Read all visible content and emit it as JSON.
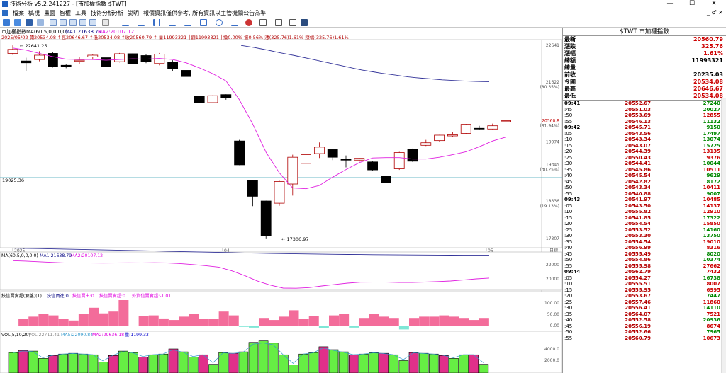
{
  "window": {
    "title": "技術分析 v5.2.241227 - [市加權指數 $TWT]",
    "min": "—",
    "max": "☐",
    "close": "✕"
  },
  "menu": [
    "檔案",
    "稿視",
    "畫面",
    "智權",
    "工具",
    "技術分析",
    "分析",
    "說明",
    "報價資訊僅供參考, 所有資訊以主管機關公告為準"
  ],
  "menu_right": "_ ♂ ×",
  "chart_header": {
    "name": "市加權指數",
    "ma_label": "MA(60,5,0,0,0,0)",
    "ma1": "MA1:21638.79",
    "ma2": "MA2:20107.12",
    "info": "2025/05/02 開20534.08 ↑高20646.67 ↑低20534.08 ↑收20560.79 ↑ 量11993321 │額11993321 │換0.00% 振0.56% 漲(325.76)1.61% 漲幅(325.76)1.61%"
  },
  "chart_data": [
    {
      "type": "candlestick",
      "title": "市加權指數",
      "y_ticks": [
        22641,
        21622,
        20560.8,
        19974,
        19345,
        18336,
        17307
      ],
      "y_pct": [
        "(80.35%)",
        "(81.94%)",
        "(30.25%)",
        "(19.13%)"
      ],
      "x_labels": [
        "2025",
        "04",
        "05"
      ],
      "annotations": [
        "22641.25",
        "17306.97",
        "19025.36"
      ],
      "candles": [
        {
          "o": 22420,
          "h": 22641,
          "l": 22380,
          "c": 22530
        },
        {
          "o": 22210,
          "h": 22300,
          "l": 21930,
          "c": 22160
        },
        {
          "o": 22250,
          "h": 22480,
          "l": 22200,
          "c": 22370
        },
        {
          "o": 22420,
          "h": 22460,
          "l": 22030,
          "c": 22060
        },
        {
          "o": 22090,
          "h": 22120,
          "l": 22010,
          "c": 22060
        },
        {
          "o": 22200,
          "h": 22330,
          "l": 22130,
          "c": 22230
        },
        {
          "o": 22320,
          "h": 22400,
          "l": 22240,
          "c": 22370
        },
        {
          "o": 22300,
          "h": 22380,
          "l": 21980,
          "c": 22050
        },
        {
          "o": 22190,
          "h": 22430,
          "l": 22170,
          "c": 22410
        },
        {
          "o": 22410,
          "h": 22420,
          "l": 22120,
          "c": 22140
        },
        {
          "o": 22360,
          "h": 22410,
          "l": 22150,
          "c": 22190
        },
        {
          "o": 22140,
          "h": 22430,
          "l": 22090,
          "c": 22400
        },
        {
          "o": 22180,
          "h": 22230,
          "l": 21930,
          "c": 22000
        },
        {
          "o": 21950,
          "h": 21960,
          "l": 21750,
          "c": 21780
        },
        {
          "o": 21230,
          "h": 21240,
          "l": 21040,
          "c": 21060
        },
        {
          "o": 21060,
          "h": 21260,
          "l": 21050,
          "c": 21250
        },
        {
          "o": 21280,
          "h": 21290,
          "l": 21140,
          "c": 21200
        },
        {
          "o": 20000,
          "h": 20030,
          "l": 19330,
          "c": 19340
        },
        {
          "o": 18900,
          "h": 18910,
          "l": 18200,
          "c": 18470
        },
        {
          "o": 18340,
          "h": 18350,
          "l": 17307,
          "c": 17390
        },
        {
          "o": 18280,
          "h": 18900,
          "l": 18210,
          "c": 18880
        },
        {
          "o": 18810,
          "h": 19620,
          "l": 18490,
          "c": 19550
        },
        {
          "o": 19380,
          "h": 19950,
          "l": 19280,
          "c": 19620
        },
        {
          "o": 19650,
          "h": 19960,
          "l": 19530,
          "c": 19830
        },
        {
          "o": 19760,
          "h": 19780,
          "l": 19470,
          "c": 19550
        },
        {
          "o": 19490,
          "h": 19600,
          "l": 19270,
          "c": 19470
        },
        {
          "o": 19470,
          "h": 19530,
          "l": 19420,
          "c": 19520
        },
        {
          "o": 19420,
          "h": 19450,
          "l": 19170,
          "c": 19200
        },
        {
          "o": 19020,
          "h": 19070,
          "l": 18830,
          "c": 18850
        },
        {
          "o": 19230,
          "h": 19700,
          "l": 19200,
          "c": 19680
        },
        {
          "o": 19770,
          "h": 19790,
          "l": 19420,
          "c": 19440
        },
        {
          "o": 19880,
          "h": 20030,
          "l": 19860,
          "c": 19950
        },
        {
          "o": 20010,
          "h": 20170,
          "l": 19990,
          "c": 20160
        },
        {
          "o": 20140,
          "h": 20240,
          "l": 20110,
          "c": 20170
        },
        {
          "o": 20210,
          "h": 20470,
          "l": 20190,
          "c": 20460
        },
        {
          "o": 20350,
          "h": 20420,
          "l": 20300,
          "c": 20330
        },
        {
          "o": 20330,
          "h": 20480,
          "l": 20320,
          "c": 20420
        },
        {
          "o": 20534,
          "h": 20646,
          "l": 20534,
          "c": 20561
        }
      ],
      "ma_series": [
        {
          "name": "MA1",
          "values": [
            22640,
            22610,
            22580,
            22545,
            22510,
            22470,
            22430,
            22395,
            22360,
            22320,
            22280,
            22240,
            22200,
            22160,
            22120,
            22080,
            22040,
            22000,
            21960,
            21930,
            21900,
            21870,
            21845,
            21820,
            21795,
            21770,
            21750,
            21735,
            21720,
            21705,
            21690,
            21680,
            21670,
            21660,
            21652,
            21645,
            21641,
            21639
          ]
        },
        {
          "name": "MA2",
          "values": [
            22570,
            22510,
            22420,
            22330,
            22260,
            22250,
            22250,
            22230,
            22250,
            22270,
            22260,
            22280,
            22250,
            22160,
            22020,
            21860,
            21660,
            21140,
            20470,
            19690,
            19120,
            18700,
            18680,
            18770,
            19000,
            19210,
            19400,
            19530,
            19540,
            19540,
            19500,
            19500,
            19550,
            19620,
            19700,
            19840,
            20000,
            20107
          ]
        }
      ]
    },
    {
      "type": "line",
      "title": "MA(60,5,0,0,0,0)",
      "series_labels": [
        "MA(60,5,0,0,0,0)",
        "MA1:21638.79",
        "MA2:20107.12"
      ],
      "y_ticks": [
        22000,
        20000
      ]
    },
    {
      "type": "bar",
      "title": "技信賣實超(解盤)(1)",
      "legend": [
        "技信賣實超(解盤)(1)",
        "技信買進:0",
        "技信賣出:0",
        "技信賣實超:0",
        "外資信賣實超:-1.01"
      ],
      "y_ticks": [
        "100.00",
        "50.00",
        "0.00"
      ],
      "values": [
        0,
        25,
        35,
        45,
        40,
        25,
        20,
        45,
        70,
        48,
        55,
        100,
        0,
        38,
        40,
        28,
        22,
        35,
        45,
        25,
        25,
        55,
        40,
        -5,
        -8,
        30,
        22,
        35,
        60,
        25,
        38,
        -10,
        40,
        45,
        -8,
        30,
        45,
        35,
        30,
        -15,
        30,
        35,
        35,
        40,
        35,
        30,
        22,
        30
      ]
    },
    {
      "type": "bar",
      "title": "VOL(5,10,20)",
      "series_labels": [
        "VOL(5,10,20)",
        "VOL:22711.41",
        "MA5:22090.84",
        "MA2:29636.18",
        "量:1199.33"
      ],
      "y_ticks": [
        "4000.0",
        "2000.0"
      ],
      "values": [
        2800,
        3100,
        3000,
        2000,
        2400,
        2600,
        2700,
        2600,
        2500,
        1500,
        2400,
        3000,
        2800,
        2200,
        2500,
        2600,
        3300,
        2900,
        2200,
        2500,
        1200,
        2800,
        2700,
        2900,
        4200,
        4400,
        4100,
        2500,
        1100,
        2600,
        2800,
        3600,
        3200,
        2900,
        2500,
        2600,
        2800,
        2700,
        2500,
        1700,
        2800,
        2700,
        2600,
        2400,
        2000,
        2500,
        2500,
        1200
      ]
    }
  ],
  "panel": {
    "title": "$TWT 市加權指數",
    "quote": [
      {
        "label": "最新",
        "value": "20560.79",
        "cls": "up"
      },
      {
        "label": "漲跌",
        "value": "325.76",
        "cls": "up"
      },
      {
        "label": "漲幅",
        "value": "1.61%",
        "cls": "up"
      },
      {
        "label": "總額",
        "value": "11993321",
        "cls": ""
      },
      {
        "label": "總量",
        "value": "",
        "cls": ""
      },
      {
        "label": "前收",
        "value": "20235.03",
        "cls": ""
      },
      {
        "label": "今開",
        "value": "20534.08",
        "cls": "up"
      },
      {
        "label": "最高",
        "value": "20646.67",
        "cls": "up"
      },
      {
        "label": "最低",
        "value": "20534.08",
        "cls": "up"
      }
    ],
    "ticks": [
      {
        "t": "09:41",
        "p": "20552.67",
        "v": "27240",
        "bold": true,
        "vc": "dn"
      },
      {
        "t": ":45",
        "p": "20551.03",
        "v": "20027",
        "vc": "dn"
      },
      {
        "t": ":50",
        "p": "20553.69",
        "v": "12855",
        "vc": "up"
      },
      {
        "t": ":55",
        "p": "20546.13",
        "v": "11132",
        "vc": "dn"
      },
      {
        "t": "09:42",
        "p": "20545.71",
        "v": "9150",
        "bold": true,
        "vc": "dn"
      },
      {
        "t": ":05",
        "p": "20543.56",
        "v": "17497",
        "vc": "dn"
      },
      {
        "t": ":10",
        "p": "20543.34",
        "v": "13074",
        "vc": "dn"
      },
      {
        "t": ":15",
        "p": "20543.07",
        "v": "15725",
        "vc": "dn"
      },
      {
        "t": ":20",
        "p": "20544.39",
        "v": "13135",
        "vc": "up"
      },
      {
        "t": ":25",
        "p": "20550.43",
        "v": "9376",
        "vc": "up"
      },
      {
        "t": ":30",
        "p": "20544.41",
        "v": "10044",
        "vc": "dn"
      },
      {
        "t": ":35",
        "p": "20545.86",
        "v": "10511",
        "vc": "up"
      },
      {
        "t": ":40",
        "p": "20545.54",
        "v": "9629",
        "vc": "dn"
      },
      {
        "t": ":45",
        "p": "20542.82",
        "v": "8172",
        "vc": "dn"
      },
      {
        "t": ":50",
        "p": "20543.34",
        "v": "10411",
        "vc": "up"
      },
      {
        "t": ":55",
        "p": "20540.88",
        "v": "9007",
        "vc": "dn"
      },
      {
        "t": "09:43",
        "p": "20541.97",
        "v": "10485",
        "bold": true,
        "vc": "up"
      },
      {
        "t": ":05",
        "p": "20543.50",
        "v": "14137",
        "vc": "up"
      },
      {
        "t": ":10",
        "p": "20555.82",
        "v": "12910",
        "vc": "up"
      },
      {
        "t": ":15",
        "p": "20541.85",
        "v": "17322",
        "vc": "dn"
      },
      {
        "t": ":20",
        "p": "20554.54",
        "v": "15850",
        "vc": "up"
      },
      {
        "t": ":25",
        "p": "20553.52",
        "v": "14160",
        "vc": "dn"
      },
      {
        "t": ":30",
        "p": "20553.30",
        "v": "13750",
        "vc": "dn"
      },
      {
        "t": ":35",
        "p": "20554.54",
        "v": "19010",
        "vc": "up"
      },
      {
        "t": ":40",
        "p": "20556.99",
        "v": "8316",
        "vc": "up"
      },
      {
        "t": ":45",
        "p": "20555.49",
        "v": "8020",
        "vc": "dn"
      },
      {
        "t": ":50",
        "p": "20554.86",
        "v": "10374",
        "vc": "dn"
      },
      {
        "t": ":55",
        "p": "20555.98",
        "v": "27662",
        "vc": "up"
      },
      {
        "t": "09:44",
        "p": "20562.79",
        "v": "7432",
        "bold": true,
        "vc": "up"
      },
      {
        "t": ":05",
        "p": "20554.27",
        "v": "16738",
        "vc": "dn"
      },
      {
        "t": ":10",
        "p": "20555.51",
        "v": "8007",
        "vc": "up"
      },
      {
        "t": ":15",
        "p": "20555.95",
        "v": "6995",
        "vc": "up"
      },
      {
        "t": ":20",
        "p": "20553.67",
        "v": "7447",
        "vc": "dn"
      },
      {
        "t": ":25",
        "p": "20557.46",
        "v": "11860",
        "vc": "up"
      },
      {
        "t": ":30",
        "p": "20556.41",
        "v": "14110",
        "vc": "dn"
      },
      {
        "t": ":35",
        "p": "20564.07",
        "v": "7521",
        "vc": "up"
      },
      {
        "t": ":40",
        "p": "20552.58",
        "v": "20936",
        "vc": "dn"
      },
      {
        "t": ":45",
        "p": "20556.19",
        "v": "8674",
        "vc": "up"
      },
      {
        "t": ":50",
        "p": "20552.66",
        "v": "7965",
        "vc": "dn"
      },
      {
        "t": ":55",
        "p": "20560.79",
        "v": "10673",
        "vc": "up"
      }
    ]
  }
}
